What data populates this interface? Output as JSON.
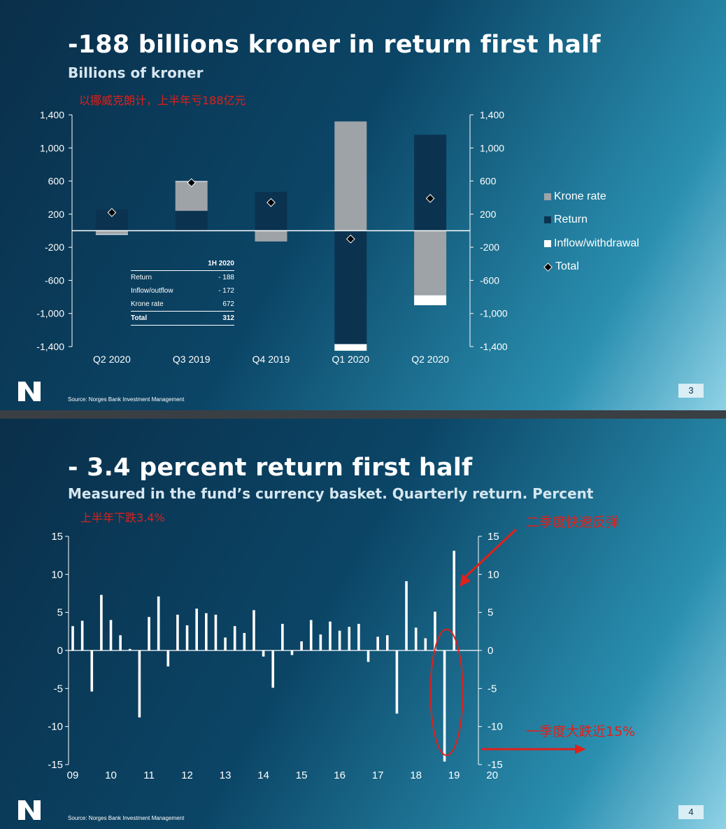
{
  "slide1": {
    "title": "-188 billions kroner in return first half",
    "subtitle": "Billions of kroner",
    "annotation_cn": "以挪威克朗计，上半年亏188亿元",
    "source": "Source: Norges Bank Investment Management",
    "page_number": "3",
    "table": {
      "header": "1H 2020",
      "rows": [
        {
          "label": "Return",
          "value": "- 188"
        },
        {
          "label": "Inflow/outflow",
          "value": "- 172"
        },
        {
          "label": "Krone rate",
          "value": "672"
        },
        {
          "label": "Total",
          "value": "312"
        }
      ]
    }
  },
  "slide2": {
    "title": "- 3.4 percent return first half",
    "subtitle": "Measured in the fund’s currency basket. Quarterly return. Percent",
    "annotation_cn_1": "上半年下跌3.4%",
    "annotation_cn_2": "二季度快速反弹",
    "annotation_cn_3": "一季度大跌近15%",
    "source": "Source: Norges Bank Investment Management",
    "page_number": "4"
  },
  "colors": {
    "krone_rate": "#9ea3a8",
    "return": "#0b3350",
    "inflow": "#ffffff",
    "annotation": "#e0201a"
  },
  "chart_data": [
    {
      "type": "bar",
      "stacked": true,
      "categories": [
        "Q2 2020",
        "Q3 2019",
        "Q4 2019",
        "Q1 2020",
        "Q2 2020"
      ],
      "series": [
        {
          "name": "Krone rate",
          "values": [
            -40,
            350,
            -130,
            1320,
            -780
          ]
        },
        {
          "name": "Return",
          "values": [
            260,
            240,
            470,
            -1370,
            1160
          ]
        },
        {
          "name": "Inflow/withdrawal",
          "values": [
            -10,
            10,
            0,
            -80,
            -120
          ]
        },
        {
          "name": "Total",
          "marker": "diamond",
          "values": [
            220,
            580,
            340,
            -100,
            390
          ]
        }
      ],
      "ylim": [
        -1400,
        1400
      ],
      "yticks": [
        "1,400",
        "1,000",
        "600",
        "200",
        "-200",
        "-600",
        "-1,000",
        "-1,400"
      ],
      "ytick_values": [
        1400,
        1000,
        600,
        200,
        -200,
        -600,
        -1000,
        -1400
      ],
      "legend_position": "right",
      "grid": false
    },
    {
      "type": "bar",
      "x_tick_labels": [
        "09",
        "10",
        "11",
        "12",
        "13",
        "14",
        "15",
        "16",
        "17",
        "18",
        "19",
        "20"
      ],
      "values": [
        3.2,
        3.9,
        -5.4,
        7.3,
        4.0,
        2.0,
        0.2,
        -8.8,
        4.4,
        7.1,
        -2.1,
        4.7,
        3.3,
        5.5,
        4.9,
        4.7,
        1.7,
        3.2,
        2.3,
        5.3,
        -0.8,
        -4.9,
        3.5,
        -0.6,
        1.2,
        4.0,
        2.1,
        3.8,
        2.6,
        3.1,
        3.5,
        -1.5,
        1.8,
        2.0,
        -8.3,
        9.1,
        3.0,
        1.6,
        5.1,
        -14.6,
        13.1
      ],
      "ylim": [
        -15,
        15
      ],
      "yticks": [
        "15",
        "10",
        "5",
        "0",
        "-5",
        "-10",
        "-15"
      ],
      "ytick_values": [
        15,
        10,
        5,
        0,
        -5,
        -10,
        -15
      ],
      "grid": false
    }
  ]
}
